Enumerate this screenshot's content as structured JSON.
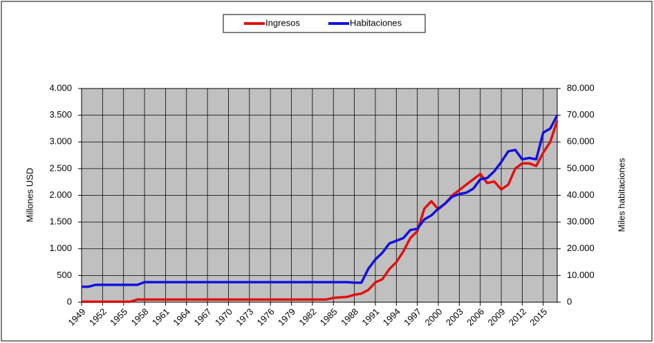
{
  "chart_data": {
    "type": "line",
    "x": [
      1949,
      1950,
      1951,
      1952,
      1953,
      1954,
      1955,
      1956,
      1957,
      1958,
      1959,
      1960,
      1961,
      1962,
      1963,
      1964,
      1965,
      1966,
      1967,
      1968,
      1969,
      1970,
      1971,
      1972,
      1973,
      1974,
      1975,
      1976,
      1977,
      1978,
      1979,
      1980,
      1981,
      1982,
      1983,
      1984,
      1985,
      1986,
      1987,
      1988,
      1989,
      1990,
      1991,
      1992,
      1993,
      1994,
      1995,
      1996,
      1997,
      1998,
      1999,
      2000,
      2001,
      2002,
      2003,
      2004,
      2005,
      2006,
      2007,
      2008,
      2009,
      2010,
      2011,
      2012,
      2013,
      2014,
      2015,
      2016,
      2017
    ],
    "xlim": [
      1949,
      2017
    ],
    "xticks": [
      1949,
      1952,
      1955,
      1958,
      1961,
      1964,
      1967,
      1970,
      1973,
      1976,
      1979,
      1982,
      1985,
      1988,
      1991,
      1994,
      1997,
      2000,
      2003,
      2006,
      2009,
      2012,
      2015
    ],
    "ylabel": "Millones USD",
    "y2label": "Miles habitaciones",
    "ylim": [
      0,
      4000
    ],
    "yticks": [
      0,
      500,
      {
        "value": 1000,
        "label": "1.000"
      },
      {
        "value": 1500,
        "label": "1.500"
      },
      {
        "value": 2000,
        "label": "2.000"
      },
      {
        "value": 2500,
        "label": "2.500"
      },
      {
        "value": 3000,
        "label": "3.000"
      },
      {
        "value": 3500,
        "label": "3.500"
      },
      {
        "value": 4000,
        "label": "4.000"
      }
    ],
    "y2lim": [
      0,
      80000
    ],
    "y2ticks": [
      0,
      {
        "value": 10000,
        "label": "10.000"
      },
      {
        "value": 20000,
        "label": "20.000"
      },
      {
        "value": 30000,
        "label": "30.000"
      },
      {
        "value": 40000,
        "label": "40.000"
      },
      {
        "value": 50000,
        "label": "50.000"
      },
      {
        "value": 60000,
        "label": "60.000"
      },
      {
        "value": 70000,
        "label": "70.000"
      },
      {
        "value": 80000,
        "label": "80.000"
      }
    ],
    "grid": true,
    "legend": "top",
    "series": [
      {
        "name": "Ingresos",
        "color": "#e01010",
        "values": [
          10,
          10,
          10,
          10,
          10,
          10,
          10,
          10,
          50,
          50,
          50,
          50,
          50,
          50,
          50,
          50,
          50,
          50,
          50,
          50,
          50,
          50,
          50,
          50,
          50,
          50,
          50,
          50,
          50,
          50,
          50,
          50,
          50,
          50,
          50,
          50,
          80,
          90,
          100,
          140,
          160,
          230,
          370,
          430,
          620,
          750,
          950,
          1200,
          1330,
          1750,
          1890,
          1740,
          1850,
          2000,
          2100,
          2200,
          2300,
          2400,
          2230,
          2260,
          2110,
          2200,
          2500,
          2600,
          2600,
          2550,
          2800,
          3000,
          3400
        ]
      },
      {
        "name": "Habitaciones",
        "color": "#1010e0",
        "axis": "y2",
        "values": [
          5800,
          5800,
          6500,
          6500,
          6500,
          6500,
          6500,
          6500,
          6500,
          7500,
          7500,
          7500,
          7500,
          7500,
          7500,
          7500,
          7500,
          7500,
          7500,
          7500,
          7500,
          7500,
          7500,
          7500,
          7500,
          7500,
          7500,
          7500,
          7500,
          7500,
          7500,
          7500,
          7500,
          7500,
          7500,
          7500,
          7500,
          7500,
          7500,
          7300,
          7300,
          12500,
          16000,
          18500,
          22000,
          23000,
          24000,
          27000,
          27500,
          31000,
          32500,
          35000,
          37000,
          39500,
          40500,
          41000,
          42500,
          46000,
          46500,
          49000,
          52500,
          56500,
          57000,
          53500,
          54000,
          53500,
          63500,
          65000,
          70000
        ]
      }
    ]
  }
}
